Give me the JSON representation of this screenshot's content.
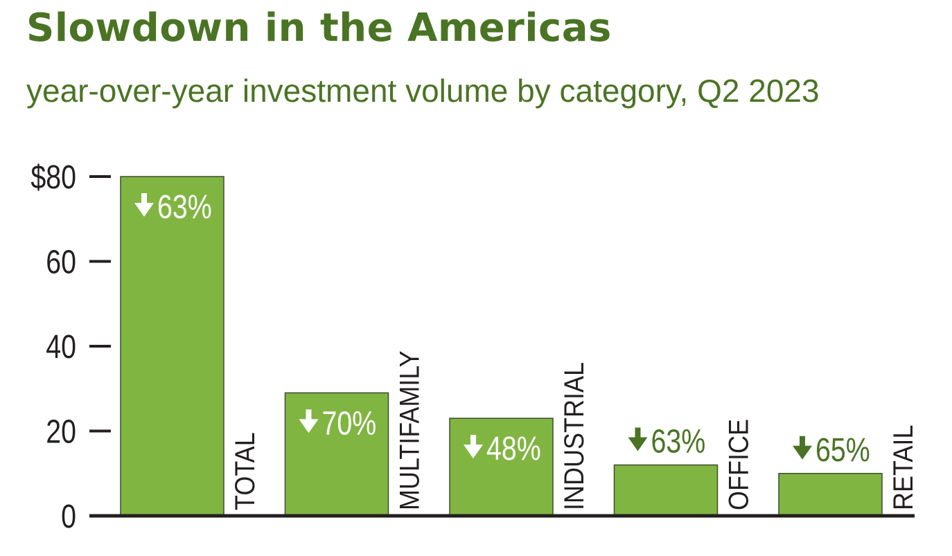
{
  "title": "Slowdown in the Americas",
  "subtitle": "year-over-year investment volume by category, Q2 2023",
  "colors": {
    "title": "#4a7424",
    "bar": "#80b542",
    "bar_stroke": "#3f4a30",
    "change_label": "#4a7424",
    "axis": "#231f20"
  },
  "chart_data": {
    "type": "bar",
    "categories": [
      "TOTAL",
      "MULTIFAMILY",
      "INDUSTRIAL",
      "OFFICE",
      "RETAIL"
    ],
    "values": [
      80,
      29,
      23,
      12,
      10
    ],
    "change_labels": [
      "63%",
      "70%",
      "48%",
      "63%",
      "65%"
    ],
    "change_direction": "down",
    "y_ticks": [
      "$80",
      "60",
      "40",
      "20",
      "0"
    ],
    "y_tick_values": [
      80,
      60,
      40,
      20,
      0
    ],
    "ylim": [
      0,
      80
    ],
    "title": "Slowdown in the Americas",
    "subtitle": "year-over-year investment volume by category, Q2 2023",
    "xlabel": "",
    "ylabel": "",
    "grid": false,
    "legend": "none"
  }
}
